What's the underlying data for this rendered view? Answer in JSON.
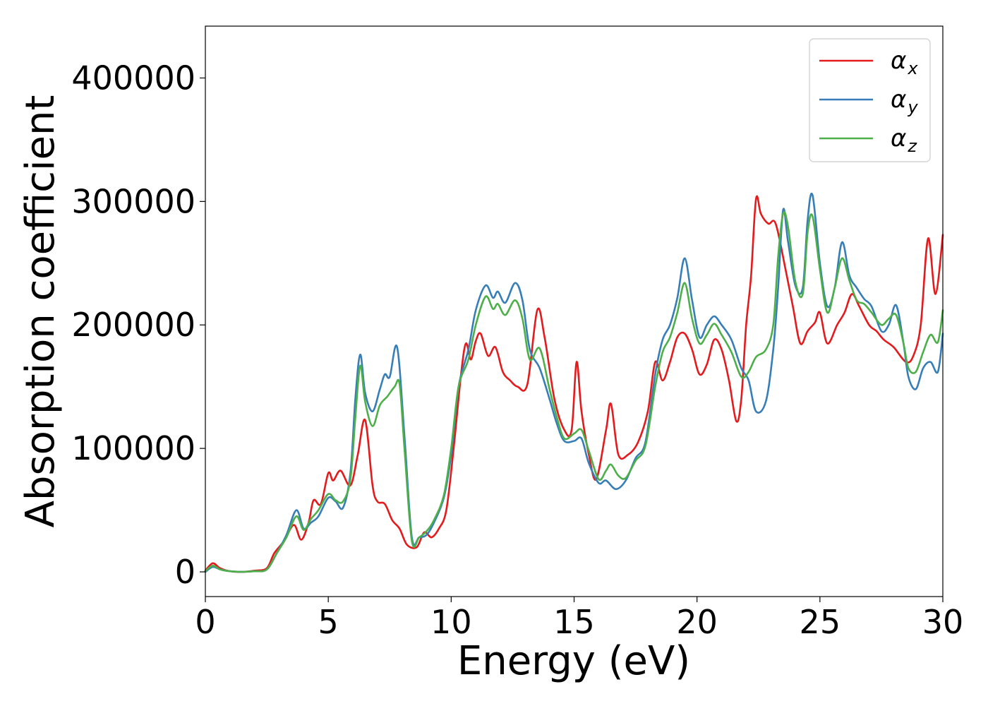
{
  "chart_data": {
    "type": "line",
    "title": "",
    "xlabel": "Energy (eV)",
    "ylabel": "Absorption coefficient",
    "xlim": [
      0,
      30
    ],
    "ylim": [
      -20000,
      442000
    ],
    "xticks": [
      0,
      5,
      10,
      15,
      20,
      25,
      30
    ],
    "xtick_labels": [
      "0",
      "5",
      "10",
      "15",
      "20",
      "25",
      "30"
    ],
    "yticks": [
      0,
      100000,
      200000,
      300000,
      400000
    ],
    "ytick_labels": [
      "0",
      "100000",
      "200000",
      "300000",
      "400000"
    ],
    "grid": false,
    "legend_position": "top-right",
    "series": [
      {
        "name": "α_x",
        "symbol": "α",
        "subscript": "x",
        "color": "#e41a1c",
        "points": [
          [
            0,
            1000
          ],
          [
            0.3,
            7000
          ],
          [
            0.6,
            3000
          ],
          [
            1,
            500
          ],
          [
            1.5,
            0
          ],
          [
            2,
            1000
          ],
          [
            2.5,
            3000
          ],
          [
            2.8,
            15000
          ],
          [
            3.2,
            25000
          ],
          [
            3.6,
            38000
          ],
          [
            3.9,
            26000
          ],
          [
            4.2,
            40000
          ],
          [
            4.4,
            58000
          ],
          [
            4.7,
            55000
          ],
          [
            5,
            80000
          ],
          [
            5.2,
            74000
          ],
          [
            5.5,
            82000
          ],
          [
            5.9,
            70000
          ],
          [
            6.2,
            95000
          ],
          [
            6.5,
            123000
          ],
          [
            6.8,
            70000
          ],
          [
            7,
            57000
          ],
          [
            7.3,
            55000
          ],
          [
            7.6,
            42000
          ],
          [
            7.9,
            35000
          ],
          [
            8.2,
            22000
          ],
          [
            8.6,
            20000
          ],
          [
            8.9,
            32000
          ],
          [
            9.2,
            28000
          ],
          [
            9.5,
            35000
          ],
          [
            9.8,
            50000
          ],
          [
            10.1,
            100000
          ],
          [
            10.4,
            160000
          ],
          [
            10.6,
            185000
          ],
          [
            10.8,
            172000
          ],
          [
            11,
            187000
          ],
          [
            11.2,
            193000
          ],
          [
            11.5,
            175000
          ],
          [
            11.8,
            182000
          ],
          [
            12.1,
            162000
          ],
          [
            12.4,
            155000
          ],
          [
            12.7,
            150000
          ],
          [
            13.1,
            152000
          ],
          [
            13.5,
            212000
          ],
          [
            13.8,
            190000
          ],
          [
            14.2,
            140000
          ],
          [
            14.6,
            115000
          ],
          [
            14.9,
            115000
          ],
          [
            15.1,
            170000
          ],
          [
            15.3,
            130000
          ],
          [
            15.6,
            95000
          ],
          [
            15.9,
            75000
          ],
          [
            16.3,
            115000
          ],
          [
            16.5,
            136000
          ],
          [
            16.8,
            95000
          ],
          [
            17.2,
            95000
          ],
          [
            17.6,
            105000
          ],
          [
            18,
            130000
          ],
          [
            18.3,
            170000
          ],
          [
            18.6,
            155000
          ],
          [
            18.9,
            170000
          ],
          [
            19.2,
            190000
          ],
          [
            19.5,
            193000
          ],
          [
            19.8,
            180000
          ],
          [
            20.1,
            160000
          ],
          [
            20.4,
            168000
          ],
          [
            20.7,
            188000
          ],
          [
            21,
            180000
          ],
          [
            21.3,
            155000
          ],
          [
            21.6,
            122000
          ],
          [
            21.8,
            140000
          ],
          [
            22,
            200000
          ],
          [
            22.2,
            240000
          ],
          [
            22.4,
            302000
          ],
          [
            22.6,
            290000
          ],
          [
            22.9,
            282000
          ],
          [
            23.2,
            282000
          ],
          [
            23.6,
            245000
          ],
          [
            23.9,
            215000
          ],
          [
            24.2,
            185000
          ],
          [
            24.5,
            195000
          ],
          [
            24.8,
            202000
          ],
          [
            25,
            210000
          ],
          [
            25.3,
            185000
          ],
          [
            25.7,
            200000
          ],
          [
            26,
            210000
          ],
          [
            26.3,
            225000
          ],
          [
            26.6,
            215000
          ],
          [
            27,
            200000
          ],
          [
            27.3,
            195000
          ],
          [
            27.6,
            188000
          ],
          [
            28,
            182000
          ],
          [
            28.5,
            170000
          ],
          [
            28.8,
            175000
          ],
          [
            29.1,
            200000
          ],
          [
            29.4,
            270000
          ],
          [
            29.7,
            225000
          ],
          [
            30,
            273000
          ]
        ]
      },
      {
        "name": "α_y",
        "symbol": "α",
        "subscript": "y",
        "color": "#377eb8",
        "points": [
          [
            0,
            0
          ],
          [
            0.3,
            4000
          ],
          [
            0.6,
            2000
          ],
          [
            1,
            500
          ],
          [
            1.5,
            0
          ],
          [
            2,
            500
          ],
          [
            2.5,
            2000
          ],
          [
            2.9,
            15000
          ],
          [
            3.3,
            30000
          ],
          [
            3.7,
            50000
          ],
          [
            4,
            35000
          ],
          [
            4.3,
            40000
          ],
          [
            4.6,
            45000
          ],
          [
            5,
            60000
          ],
          [
            5.3,
            57000
          ],
          [
            5.6,
            52000
          ],
          [
            5.9,
            80000
          ],
          [
            6.1,
            140000
          ],
          [
            6.3,
            176000
          ],
          [
            6.5,
            145000
          ],
          [
            6.8,
            130000
          ],
          [
            7.1,
            148000
          ],
          [
            7.3,
            160000
          ],
          [
            7.5,
            158000
          ],
          [
            7.8,
            182000
          ],
          [
            8.1,
            110000
          ],
          [
            8.4,
            28000
          ],
          [
            8.7,
            28000
          ],
          [
            9,
            30000
          ],
          [
            9.3,
            40000
          ],
          [
            9.7,
            60000
          ],
          [
            10,
            95000
          ],
          [
            10.3,
            150000
          ],
          [
            10.7,
            180000
          ],
          [
            11,
            212000
          ],
          [
            11.4,
            232000
          ],
          [
            11.7,
            222000
          ],
          [
            11.9,
            227000
          ],
          [
            12.2,
            218000
          ],
          [
            12.6,
            234000
          ],
          [
            12.9,
            220000
          ],
          [
            13.2,
            180000
          ],
          [
            13.6,
            165000
          ],
          [
            14,
            140000
          ],
          [
            14.3,
            120000
          ],
          [
            14.6,
            106000
          ],
          [
            15,
            106000
          ],
          [
            15.3,
            108000
          ],
          [
            15.6,
            88000
          ],
          [
            16,
            72000
          ],
          [
            16.3,
            74000
          ],
          [
            16.7,
            67000
          ],
          [
            17.1,
            74000
          ],
          [
            17.5,
            92000
          ],
          [
            17.9,
            105000
          ],
          [
            18.3,
            160000
          ],
          [
            18.6,
            188000
          ],
          [
            18.9,
            200000
          ],
          [
            19.2,
            222000
          ],
          [
            19.5,
            254000
          ],
          [
            19.8,
            220000
          ],
          [
            20.1,
            190000
          ],
          [
            20.4,
            200000
          ],
          [
            20.7,
            207000
          ],
          [
            21,
            200000
          ],
          [
            21.4,
            188000
          ],
          [
            21.8,
            165000
          ],
          [
            22.1,
            155000
          ],
          [
            22.4,
            130000
          ],
          [
            22.8,
            138000
          ],
          [
            23.1,
            180000
          ],
          [
            23.3,
            230000
          ],
          [
            23.5,
            293000
          ],
          [
            23.7,
            268000
          ],
          [
            24,
            232000
          ],
          [
            24.3,
            230000
          ],
          [
            24.5,
            285000
          ],
          [
            24.7,
            305000
          ],
          [
            25,
            250000
          ],
          [
            25.3,
            215000
          ],
          [
            25.6,
            230000
          ],
          [
            25.9,
            267000
          ],
          [
            26.2,
            240000
          ],
          [
            26.5,
            230000
          ],
          [
            26.8,
            221000
          ],
          [
            27.1,
            215000
          ],
          [
            27.5,
            195000
          ],
          [
            27.8,
            200000
          ],
          [
            28.1,
            216000
          ],
          [
            28.4,
            185000
          ],
          [
            28.6,
            158000
          ],
          [
            28.9,
            148000
          ],
          [
            29.2,
            165000
          ],
          [
            29.5,
            170000
          ],
          [
            29.8,
            162000
          ],
          [
            30,
            193000
          ]
        ]
      },
      {
        "name": "α_z",
        "symbol": "α",
        "subscript": "z",
        "color": "#4daf4a",
        "points": [
          [
            0,
            500
          ],
          [
            0.3,
            5000
          ],
          [
            0.6,
            2000
          ],
          [
            1,
            500
          ],
          [
            1.5,
            0
          ],
          [
            2,
            500
          ],
          [
            2.5,
            2000
          ],
          [
            2.9,
            15000
          ],
          [
            3.3,
            28000
          ],
          [
            3.7,
            45000
          ],
          [
            4,
            34000
          ],
          [
            4.3,
            43000
          ],
          [
            4.6,
            50000
          ],
          [
            5,
            63000
          ],
          [
            5.3,
            58000
          ],
          [
            5.6,
            57000
          ],
          [
            5.9,
            75000
          ],
          [
            6.1,
            125000
          ],
          [
            6.3,
            167000
          ],
          [
            6.5,
            138000
          ],
          [
            6.8,
            118000
          ],
          [
            7.1,
            135000
          ],
          [
            7.4,
            142000
          ],
          [
            7.7,
            150000
          ],
          [
            7.9,
            152000
          ],
          [
            8.1,
            100000
          ],
          [
            8.4,
            25000
          ],
          [
            8.7,
            28000
          ],
          [
            9,
            33000
          ],
          [
            9.3,
            42000
          ],
          [
            9.7,
            62000
          ],
          [
            10,
            100000
          ],
          [
            10.3,
            150000
          ],
          [
            10.7,
            172000
          ],
          [
            11,
            200000
          ],
          [
            11.4,
            223000
          ],
          [
            11.7,
            213000
          ],
          [
            11.9,
            217000
          ],
          [
            12.2,
            208000
          ],
          [
            12.6,
            220000
          ],
          [
            12.9,
            205000
          ],
          [
            13.2,
            172000
          ],
          [
            13.6,
            181000
          ],
          [
            14,
            148000
          ],
          [
            14.3,
            125000
          ],
          [
            14.6,
            108000
          ],
          [
            15,
            112000
          ],
          [
            15.3,
            115000
          ],
          [
            15.6,
            98000
          ],
          [
            16,
            75000
          ],
          [
            16.3,
            82000
          ],
          [
            16.5,
            87000
          ],
          [
            16.8,
            78000
          ],
          [
            17.1,
            76000
          ],
          [
            17.5,
            90000
          ],
          [
            17.9,
            102000
          ],
          [
            18.3,
            150000
          ],
          [
            18.6,
            178000
          ],
          [
            18.9,
            190000
          ],
          [
            19.2,
            210000
          ],
          [
            19.5,
            234000
          ],
          [
            19.8,
            205000
          ],
          [
            20.1,
            185000
          ],
          [
            20.4,
            192000
          ],
          [
            20.7,
            201000
          ],
          [
            21,
            192000
          ],
          [
            21.4,
            178000
          ],
          [
            21.8,
            158000
          ],
          [
            22.1,
            162000
          ],
          [
            22.4,
            174000
          ],
          [
            22.8,
            180000
          ],
          [
            23.1,
            200000
          ],
          [
            23.3,
            255000
          ],
          [
            23.5,
            290000
          ],
          [
            23.7,
            280000
          ],
          [
            24,
            235000
          ],
          [
            24.3,
            225000
          ],
          [
            24.5,
            275000
          ],
          [
            24.7,
            288000
          ],
          [
            25,
            245000
          ],
          [
            25.3,
            210000
          ],
          [
            25.6,
            230000
          ],
          [
            25.9,
            254000
          ],
          [
            26.2,
            236000
          ],
          [
            26.5,
            220000
          ],
          [
            26.8,
            217000
          ],
          [
            27.1,
            210000
          ],
          [
            27.5,
            200000
          ],
          [
            27.8,
            205000
          ],
          [
            28.1,
            208000
          ],
          [
            28.4,
            185000
          ],
          [
            28.6,
            165000
          ],
          [
            28.9,
            162000
          ],
          [
            29.2,
            178000
          ],
          [
            29.5,
            192000
          ],
          [
            29.8,
            186000
          ],
          [
            30,
            212000
          ]
        ]
      }
    ]
  }
}
